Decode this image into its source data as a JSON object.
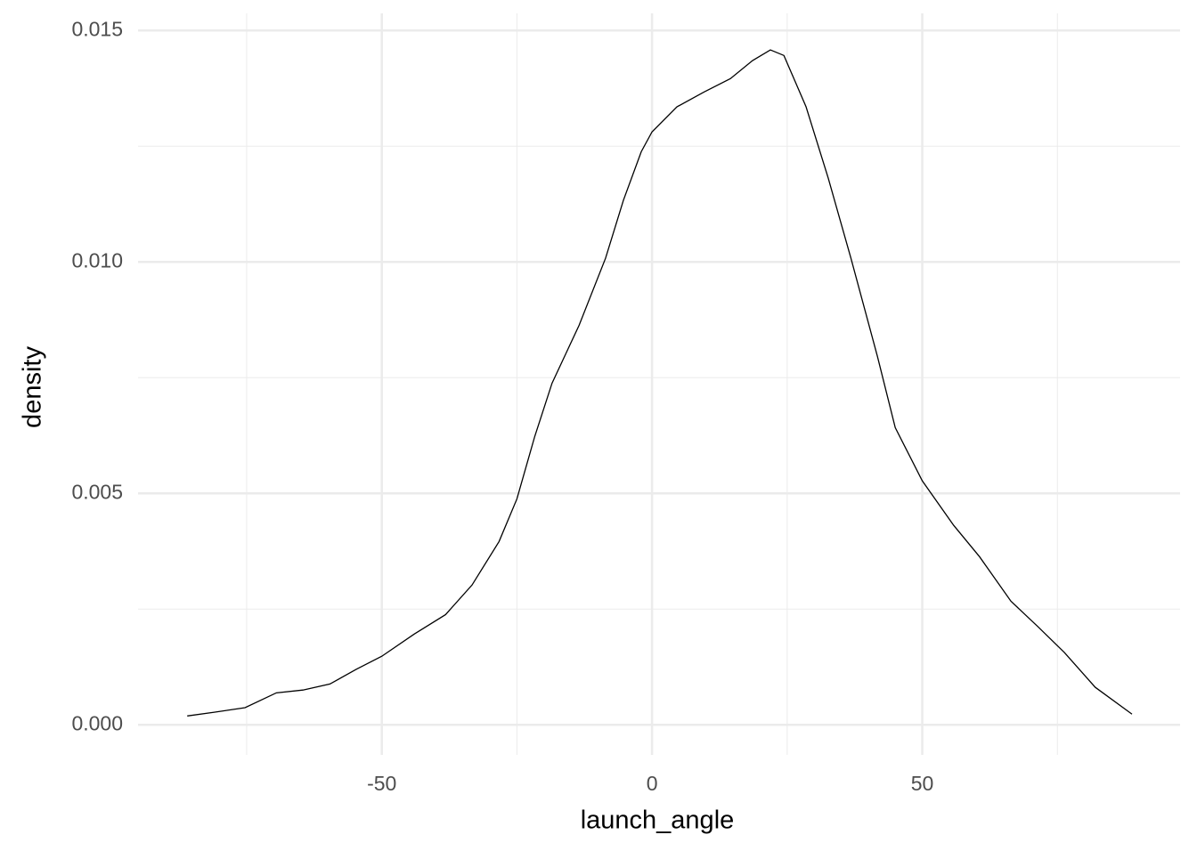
{
  "chart_data": {
    "type": "line",
    "x_label": "launch_angle",
    "y_label": "density",
    "series": [
      {
        "color": "#000000",
        "x": [
          -86,
          -81,
          -75.3,
          -69.5,
          -64.6,
          -59.6,
          -54.7,
          -50,
          -44,
          -38.2,
          -33.3,
          -28.3,
          -25,
          -21.7,
          -18.5,
          -13.5,
          -8.6,
          -5.3,
          -2,
          0,
          4.6,
          9.6,
          14.5,
          18.6,
          21.9,
          24.4,
          28.5,
          32.6,
          36.8,
          41.7,
          45,
          50,
          55.8,
          60.6,
          66.4,
          71.3,
          76.3,
          82,
          88.8
        ],
        "values": [
          0.00019,
          0.00027,
          0.00037,
          0.00069,
          0.00075,
          0.00088,
          0.0012,
          0.00148,
          0.00196,
          0.00238,
          0.00302,
          0.00396,
          0.00488,
          0.00623,
          0.00738,
          0.00863,
          0.01008,
          0.01133,
          0.01238,
          0.01281,
          0.01335,
          0.01367,
          0.01396,
          0.01435,
          0.01458,
          0.01446,
          0.01335,
          0.01181,
          0.01008,
          0.00796,
          0.00642,
          0.00527,
          0.00431,
          0.00363,
          0.00267,
          0.00213,
          0.00156,
          0.00081,
          0.00023
        ]
      }
    ],
    "xlim": [
      -95.1,
      97.7
    ],
    "ylim": [
      -0.00065,
      0.01537
    ],
    "xticks": [
      -50,
      0,
      50
    ],
    "yticks": [
      {
        "value": 0,
        "label": "0.000"
      },
      {
        "value": 0.005,
        "label": "0.005"
      },
      {
        "value": 0.01,
        "label": "0.010"
      },
      {
        "value": 0.015,
        "label": "0.015"
      }
    ],
    "x_minor_grid": [
      -75,
      -25,
      25,
      75
    ],
    "y_minor_grid": [
      0.0025,
      0.0075,
      0.0125
    ],
    "grid": true
  }
}
